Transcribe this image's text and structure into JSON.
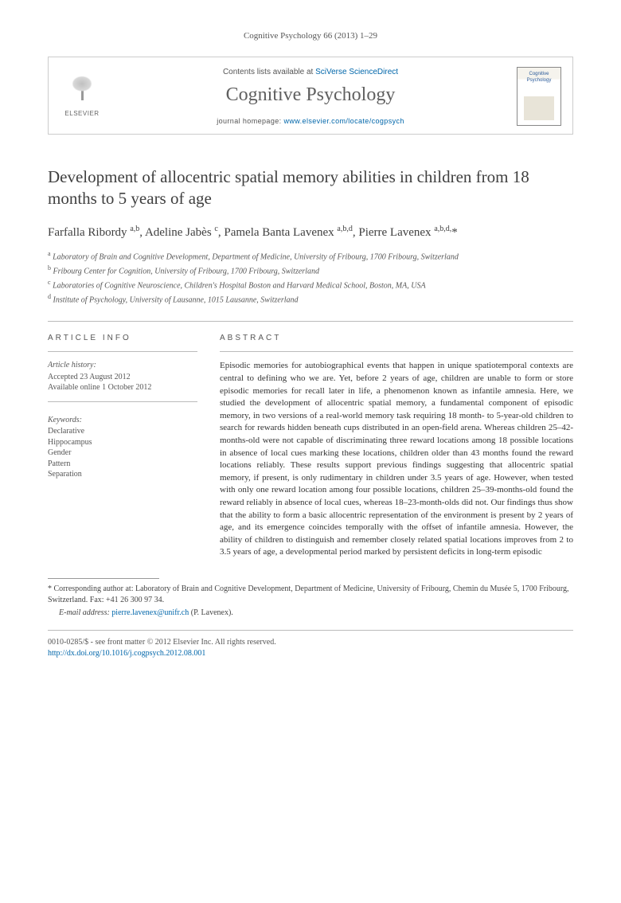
{
  "journal_ref": "Cognitive Psychology 66 (2013) 1–29",
  "header": {
    "contents_prefix": "Contents lists available at ",
    "contents_link": "SciVerse ScienceDirect",
    "journal_title": "Cognitive Psychology",
    "homepage_prefix": "journal homepage: ",
    "homepage_url": "www.elsevier.com/locate/cogpsych",
    "elsevier_label": "ELSEVIER",
    "cover_label": "Cognitive Psychology"
  },
  "article": {
    "title": "Development of allocentric spatial memory abilities in children from 18 months to 5 years of age",
    "authors_html": "Farfalla Ribordy <sup>a,b</sup>, Adeline Jabès <sup>c</sup>, Pamela Banta Lavenex <sup>a,b,d</sup>, Pierre Lavenex <sup>a,b,d,</sup><span class='star'>*</span>",
    "affiliations": [
      {
        "sup": "a",
        "text": "Laboratory of Brain and Cognitive Development, Department of Medicine, University of Fribourg, 1700 Fribourg, Switzerland"
      },
      {
        "sup": "b",
        "text": "Fribourg Center for Cognition, University of Fribourg, 1700 Fribourg, Switzerland"
      },
      {
        "sup": "c",
        "text": "Laboratories of Cognitive Neuroscience, Children's Hospital Boston and Harvard Medical School, Boston, MA, USA"
      },
      {
        "sup": "d",
        "text": "Institute of Psychology, University of Lausanne, 1015 Lausanne, Switzerland"
      }
    ]
  },
  "info": {
    "section_label": "ARTICLE INFO",
    "history_label": "Article history:",
    "accepted": "Accepted 23 August 2012",
    "online": "Available online 1 October 2012",
    "keywords_label": "Keywords:",
    "keywords": [
      "Declarative",
      "Hippocampus",
      "Gender",
      "Pattern",
      "Separation"
    ]
  },
  "abstract": {
    "section_label": "ABSTRACT",
    "text": "Episodic memories for autobiographical events that happen in unique spatiotemporal contexts are central to defining who we are. Yet, before 2 years of age, children are unable to form or store episodic memories for recall later in life, a phenomenon known as infantile amnesia. Here, we studied the development of allocentric spatial memory, a fundamental component of episodic memory, in two versions of a real-world memory task requiring 18 month- to 5-year-old children to search for rewards hidden beneath cups distributed in an open-field arena. Whereas children 25–42-months-old were not capable of discriminating three reward locations among 18 possible locations in absence of local cues marking these locations, children older than 43 months found the reward locations reliably. These results support previous findings suggesting that allocentric spatial memory, if present, is only rudimentary in children under 3.5 years of age. However, when tested with only one reward location among four possible locations, children 25–39-months-old found the reward reliably in absence of local cues, whereas 18–23-month-olds did not. Our findings thus show that the ability to form a basic allocentric representation of the environment is present by 2 years of age, and its emergence coincides temporally with the offset of infantile amnesia. However, the ability of children to distinguish and remember closely related spatial locations improves from 2 to 3.5 years of age, a developmental period marked by persistent deficits in long-term episodic"
  },
  "corr": {
    "star": "*",
    "text": "Corresponding author at: Laboratory of Brain and Cognitive Development, Department of Medicine, University of Fribourg, Chemin du Musée 5, 1700 Fribourg, Switzerland. Fax: +41 26 300 97 34.",
    "email_label": "E-mail address:",
    "email": "pierre.lavenex@unifr.ch",
    "email_name": "(P. Lavenex)."
  },
  "footer": {
    "copyright": "0010-0285/$ - see front matter © 2012 Elsevier Inc. All rights reserved.",
    "doi": "http://dx.doi.org/10.1016/j.cogpsych.2012.08.001"
  },
  "colors": {
    "link": "#0066aa",
    "text": "#333333",
    "muted": "#555555",
    "rule": "#bbbbbb"
  }
}
